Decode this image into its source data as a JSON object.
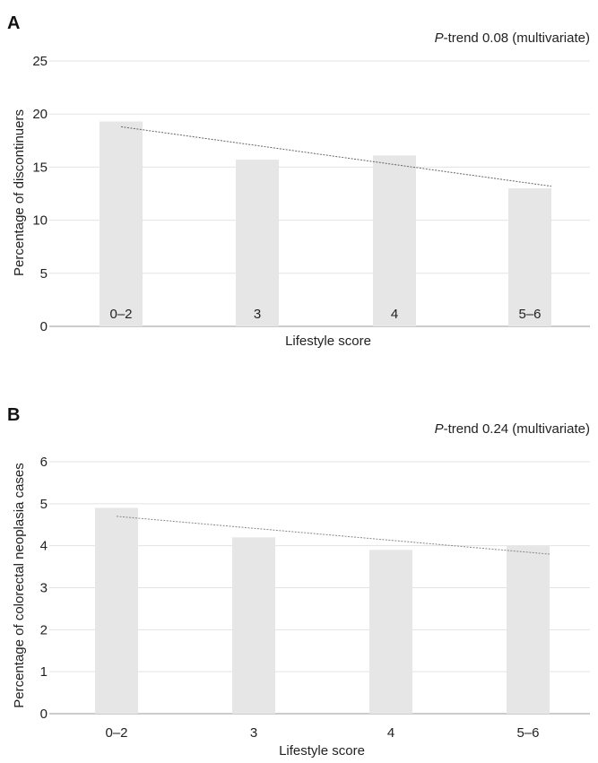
{
  "chart_data": [
    {
      "type": "bar",
      "panel_label": "A",
      "annotation_italic": "P",
      "annotation_rest": "-trend 0.08 (multivariate)",
      "categories": [
        "0–2",
        "3",
        "4",
        "5–6"
      ],
      "values": [
        19.3,
        15.7,
        16.1,
        13.0
      ],
      "trend_line": {
        "start": 18.8,
        "end": 13.2
      },
      "xlabel": "Lifestyle score",
      "ylabel": "Percentage of discontinuers",
      "ylim": [
        0,
        25
      ],
      "yticks": [
        0,
        5,
        10,
        15,
        20,
        25
      ],
      "grid": true,
      "bar_color": "#e6e6e6",
      "trend_color": "#666666"
    },
    {
      "type": "bar",
      "panel_label": "B",
      "annotation_italic": "P",
      "annotation_rest": "-trend 0.24 (multivariate)",
      "categories": [
        "0–2",
        "3",
        "4",
        "5–6"
      ],
      "values": [
        4.9,
        4.2,
        3.9,
        4.0
      ],
      "trend_line": {
        "start": 4.7,
        "end": 3.8
      },
      "xlabel": "Lifestyle score",
      "ylabel": "Percentage of colorectal neoplasia cases",
      "ylim": [
        0,
        6
      ],
      "yticks": [
        0,
        1,
        2,
        3,
        4,
        5,
        6
      ],
      "grid": true,
      "bar_color": "#e6e6e6",
      "trend_color": "#888888"
    }
  ]
}
